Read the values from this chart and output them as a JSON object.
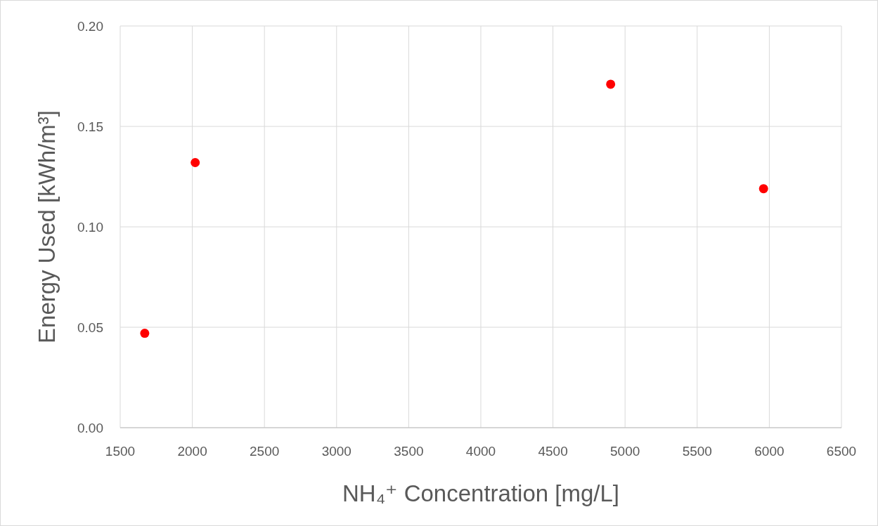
{
  "chart_data": {
    "type": "scatter",
    "xlabel": "NH₄⁺ Concentration [mg/L]",
    "ylabel": "Energy Used [kWh/m³]",
    "x": [
      1670,
      2020,
      4900,
      5960
    ],
    "series": [
      {
        "color": "#ff0000",
        "values": [
          0.047,
          0.132,
          0.171,
          0.119
        ]
      }
    ],
    "xlim": [
      1500,
      6500
    ],
    "xticks": [
      1500,
      2000,
      2500,
      3000,
      3500,
      4000,
      4500,
      5000,
      5500,
      6000,
      6500
    ],
    "ylim": [
      0,
      0.2
    ],
    "yticks": [
      {
        "value": 0,
        "label": "0.00"
      },
      {
        "value": 0.05,
        "label": "0.05"
      },
      {
        "value": 0.1,
        "label": "0.10"
      },
      {
        "value": 0.15,
        "label": "0.15"
      },
      {
        "value": 0.2,
        "label": "0.20"
      }
    ],
    "grid": true,
    "marker": "circle"
  }
}
